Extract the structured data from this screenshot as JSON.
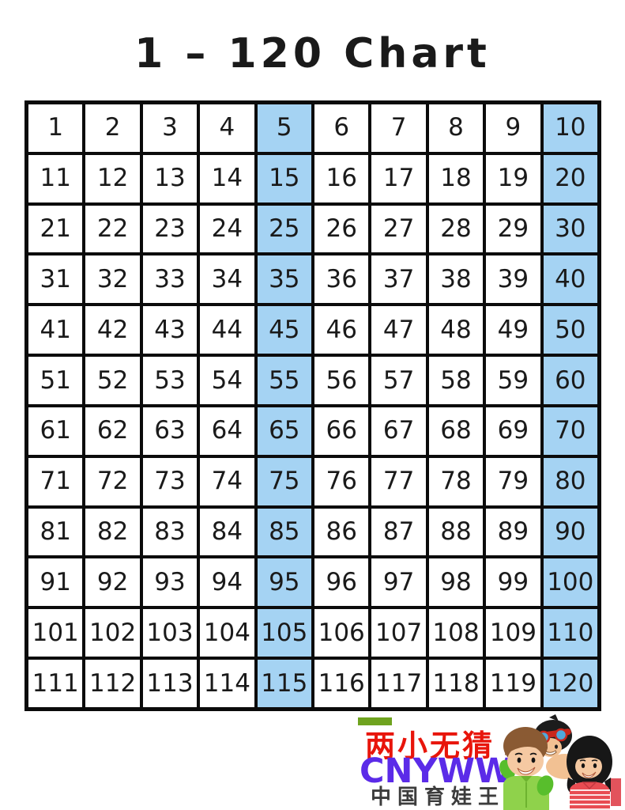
{
  "title": "1 – 120 Chart",
  "grid": {
    "rows": 12,
    "cols": 10,
    "numbers": [
      1,
      2,
      3,
      4,
      5,
      6,
      7,
      8,
      9,
      10,
      11,
      12,
      13,
      14,
      15,
      16,
      17,
      18,
      19,
      20,
      21,
      22,
      23,
      24,
      25,
      26,
      27,
      28,
      29,
      30,
      31,
      32,
      33,
      34,
      35,
      36,
      37,
      38,
      39,
      40,
      41,
      42,
      43,
      44,
      45,
      46,
      47,
      48,
      49,
      50,
      51,
      52,
      53,
      54,
      55,
      56,
      57,
      58,
      59,
      60,
      61,
      62,
      63,
      64,
      65,
      66,
      67,
      68,
      69,
      70,
      71,
      72,
      73,
      74,
      75,
      76,
      77,
      78,
      79,
      80,
      81,
      82,
      83,
      84,
      85,
      86,
      87,
      88,
      89,
      90,
      91,
      92,
      93,
      94,
      95,
      96,
      97,
      98,
      99,
      100,
      101,
      102,
      103,
      104,
      105,
      106,
      107,
      108,
      109,
      110,
      111,
      112,
      113,
      114,
      115,
      116,
      117,
      118,
      119,
      120
    ],
    "highlighted_columns": [
      5,
      10
    ]
  },
  "watermark": {
    "brand_cn": "两小无猜",
    "brand_abbr": "CNYWW",
    "brand_tagline": "中国育娃王"
  },
  "colors": {
    "highlight-blue": "#a5d3f3",
    "grid-line": "#0b0b0b",
    "number-ink": "#1a1a1a",
    "brand-red": "#e8150b",
    "brand-purple": "#5b2be8",
    "brand-green": "#6fa31f",
    "brand-gray": "#3c3c3c",
    "accent-pink": "#e2535c"
  }
}
